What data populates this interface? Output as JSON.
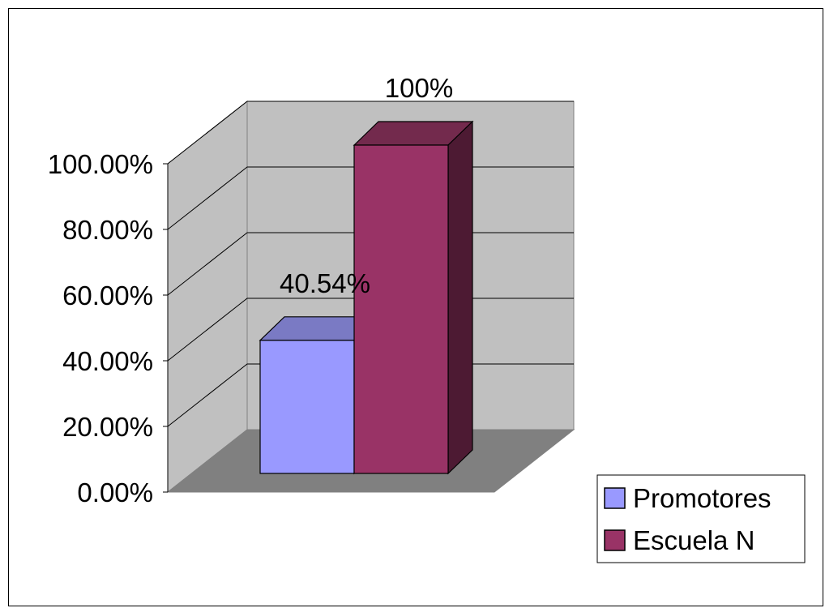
{
  "chart_data": {
    "type": "bar",
    "variant": "3d-clustered-column",
    "categories": [
      ""
    ],
    "series": [
      {
        "name": "Promotores",
        "values": [
          0.4054
        ],
        "label": "40.54%",
        "color": "#9999ff",
        "top_color": "#7a7ac4",
        "side_color": "#5e5e99"
      },
      {
        "name": "Escuela N",
        "values": [
          1.0
        ],
        "label": "100%",
        "color": "#993366",
        "top_color": "#732a4d",
        "side_color": "#4d1a33"
      }
    ],
    "y_ticks": [
      "0.00%",
      "20.00%",
      "40.00%",
      "60.00%",
      "80.00%",
      "100.00%"
    ],
    "ylim": [
      0,
      1
    ],
    "grid": true,
    "legend_position": "right",
    "colors": {
      "walls": "#c0c0c0",
      "floor": "#808080",
      "gridline": "#000000"
    }
  }
}
